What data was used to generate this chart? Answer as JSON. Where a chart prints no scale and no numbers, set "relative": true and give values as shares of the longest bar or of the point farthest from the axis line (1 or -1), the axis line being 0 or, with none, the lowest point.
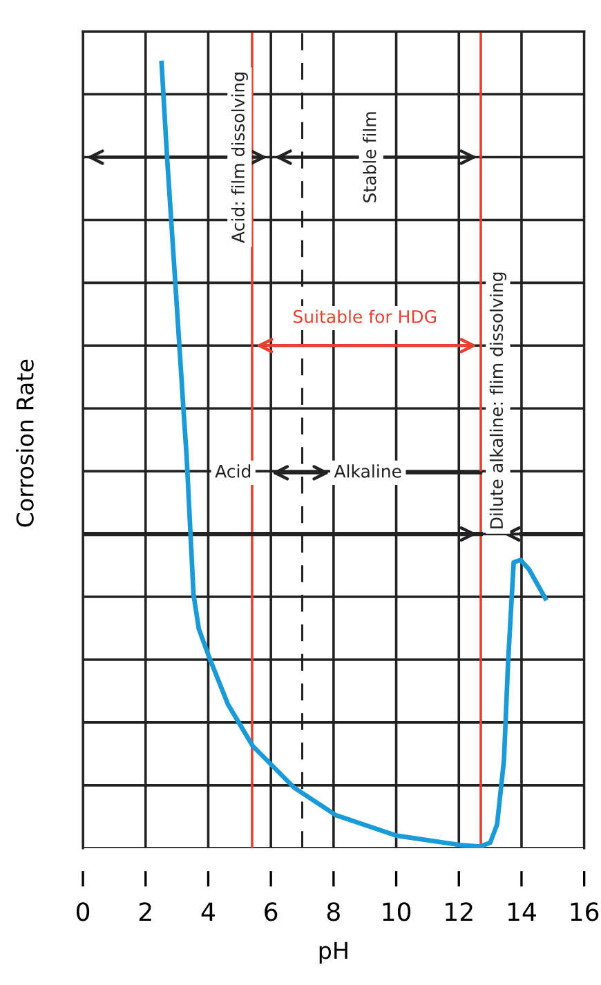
{
  "chart_data": {
    "type": "line",
    "relative": true,
    "xlabel": "pH",
    "ylabel": "Corrosion Rate",
    "xlim": [
      0,
      16
    ],
    "xticks": [
      0,
      2,
      4,
      6,
      8,
      10,
      12,
      14,
      16
    ],
    "grid": true,
    "marker": "none",
    "line_style": "solid",
    "series": [
      {
        "color": "#1a9ad6",
        "x": [
          2.51,
          2.69,
          2.95,
          3.22,
          3.31,
          3.53,
          3.7,
          4.05,
          4.63,
          5.42,
          6.74,
          8.07,
          10.0,
          12.03,
          12.69,
          13.0,
          13.22,
          13.44,
          13.57,
          13.75,
          13.97,
          14.24,
          14.76
        ],
        "values": [
          1.0,
          0.877,
          0.719,
          0.552,
          0.499,
          0.323,
          0.279,
          0.241,
          0.183,
          0.13,
          0.077,
          0.042,
          0.016,
          0.004,
          0.002,
          0.007,
          0.03,
          0.112,
          0.236,
          0.364,
          0.367,
          0.355,
          0.318
        ]
      }
    ],
    "ref_lines": [
      {
        "axis": "x",
        "value": 5.4,
        "color": "#e8402e"
      },
      {
        "axis": "x",
        "value": 12.7,
        "color": "#e8402e"
      },
      {
        "axis": "x",
        "value": 7,
        "color": "#222222",
        "line_style": "dashed"
      }
    ],
    "annotations": [
      "Acid: film dissolving",
      "Stable film",
      "Suitable for HDG",
      "Acid",
      "Alkaline",
      "Dilute alkaline: flim dissolving"
    ]
  }
}
